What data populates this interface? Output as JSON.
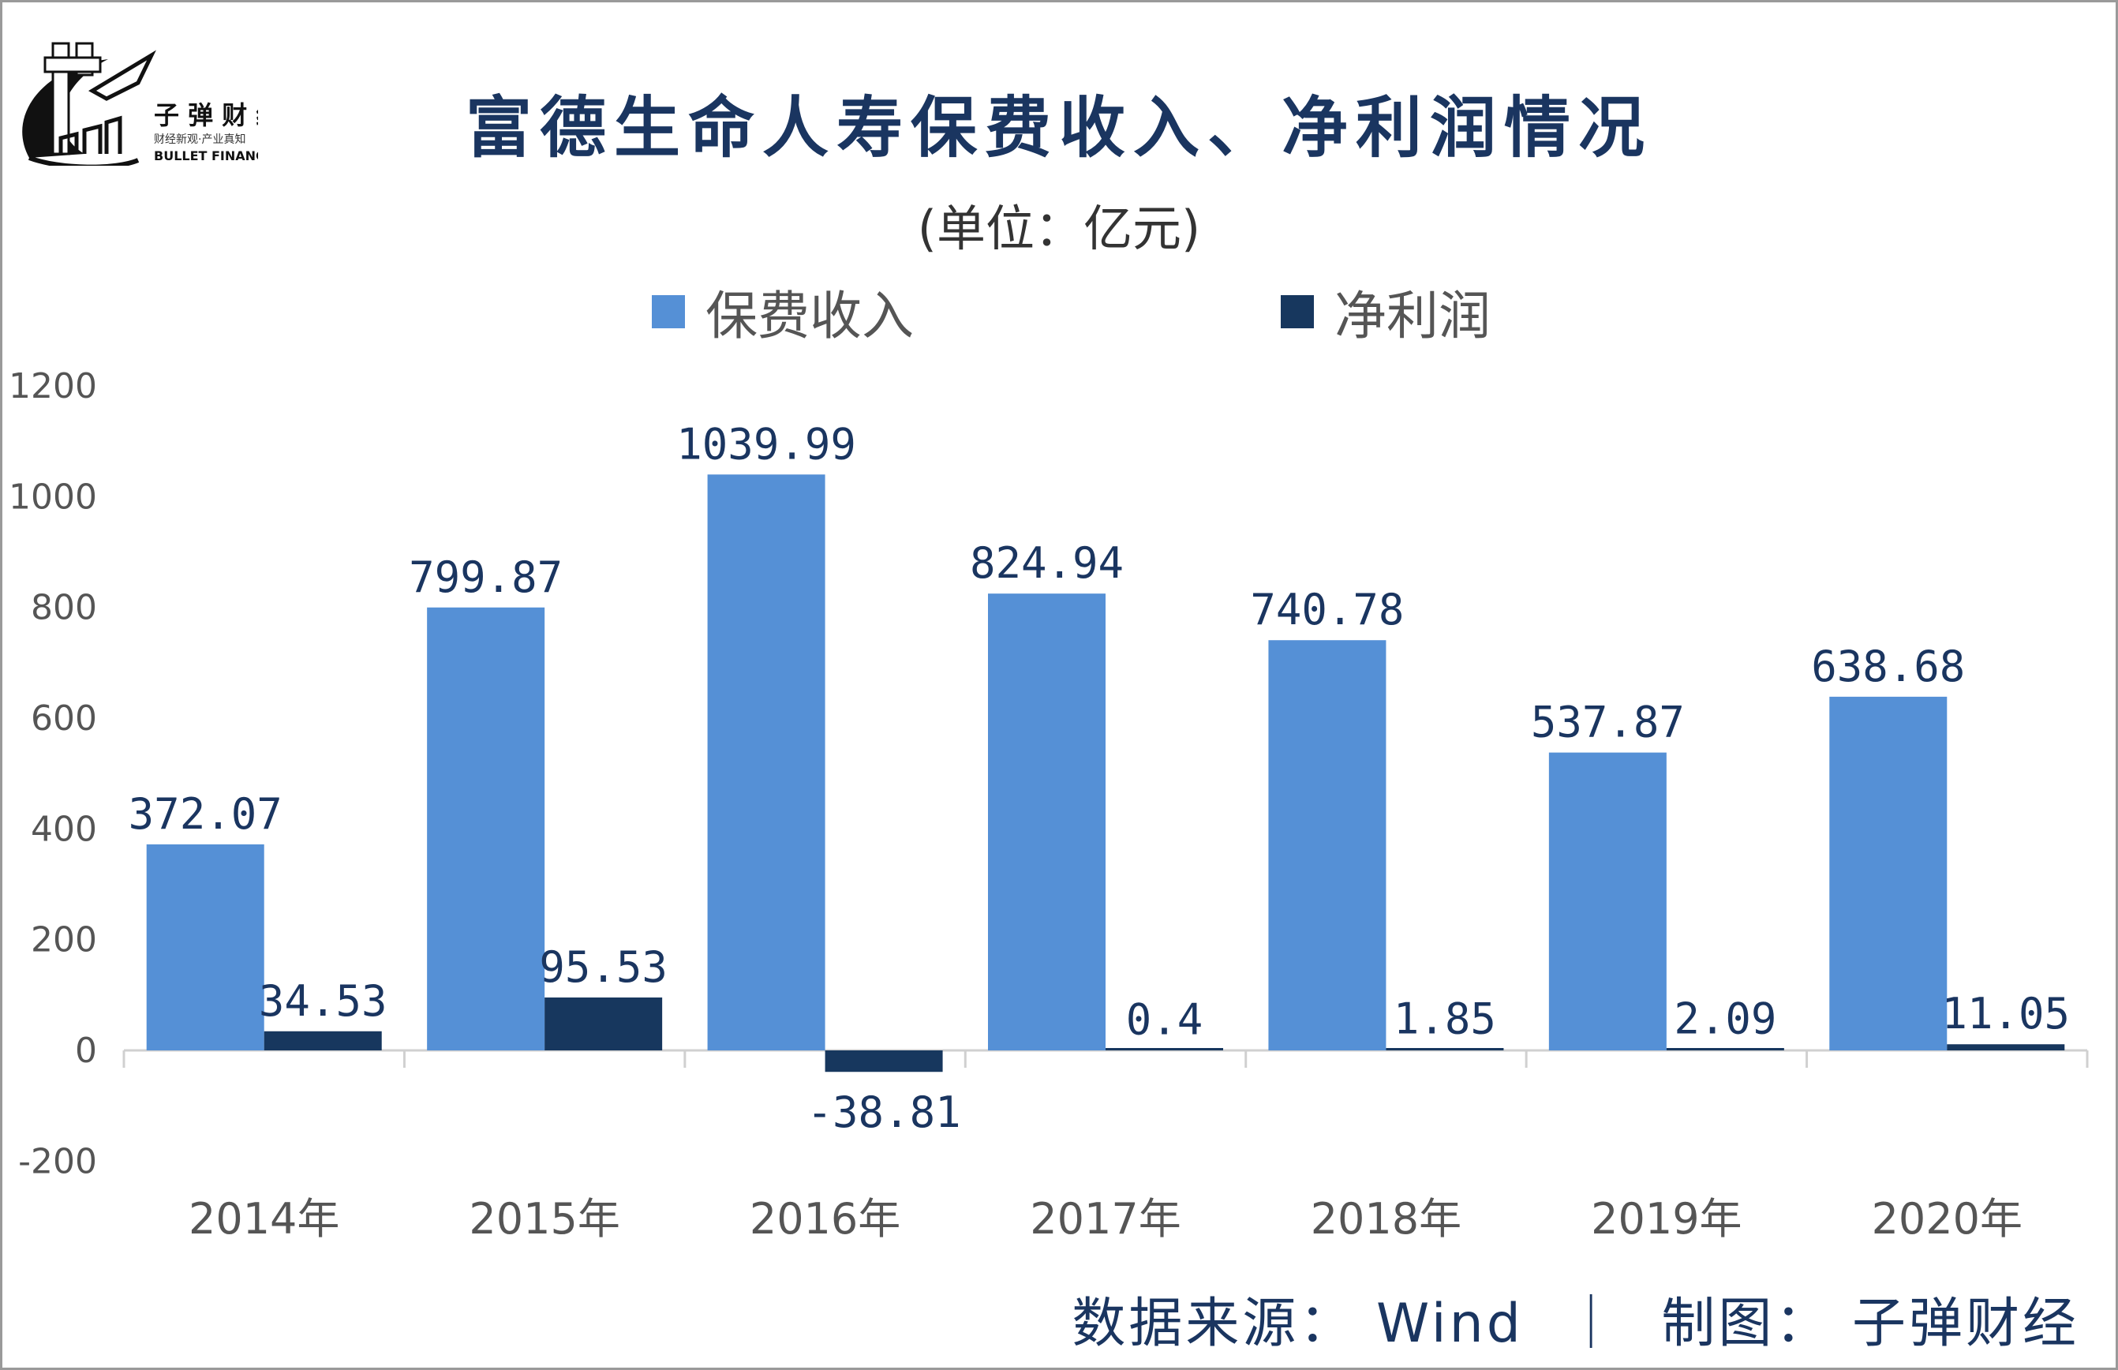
{
  "logo": {
    "name": "子弹财经",
    "slogan": "财经新观·产业真知",
    "english": "BULLET FINANCE"
  },
  "footer": {
    "text": "数据来源： Wind  ｜  制图： 子弹财经"
  },
  "colors": {
    "premium": "#5590d6",
    "net_profit": "#17375e",
    "label": "#1a3560"
  },
  "chart_data": {
    "type": "bar",
    "title": "富德生命人寿保费收入、净利润情况",
    "subtitle": "(单位：亿元)",
    "categories": [
      "2014年",
      "2015年",
      "2016年",
      "2017年",
      "2018年",
      "2019年",
      "2020年"
    ],
    "series": [
      {
        "name": "保费收入",
        "values": [
          372.07,
          799.87,
          1039.99,
          824.94,
          740.78,
          537.87,
          638.68
        ],
        "labels": [
          "372.07",
          "799.87",
          "1039.99",
          "824.94",
          "740.78",
          "537.87",
          "638.68"
        ]
      },
      {
        "name": "净利润",
        "values": [
          34.53,
          95.53,
          -38.81,
          0.4,
          1.85,
          2.09,
          11.05
        ],
        "labels": [
          "34.53",
          "95.53",
          "-38.81",
          "0.4",
          "1.85",
          "2.09",
          "11.05"
        ]
      }
    ],
    "yticks": [
      "1200",
      "1000",
      "800",
      "600",
      "400",
      "200",
      "0",
      "-200"
    ],
    "ylim": [
      -200,
      1200
    ],
    "grid": false,
    "legend": "top"
  }
}
